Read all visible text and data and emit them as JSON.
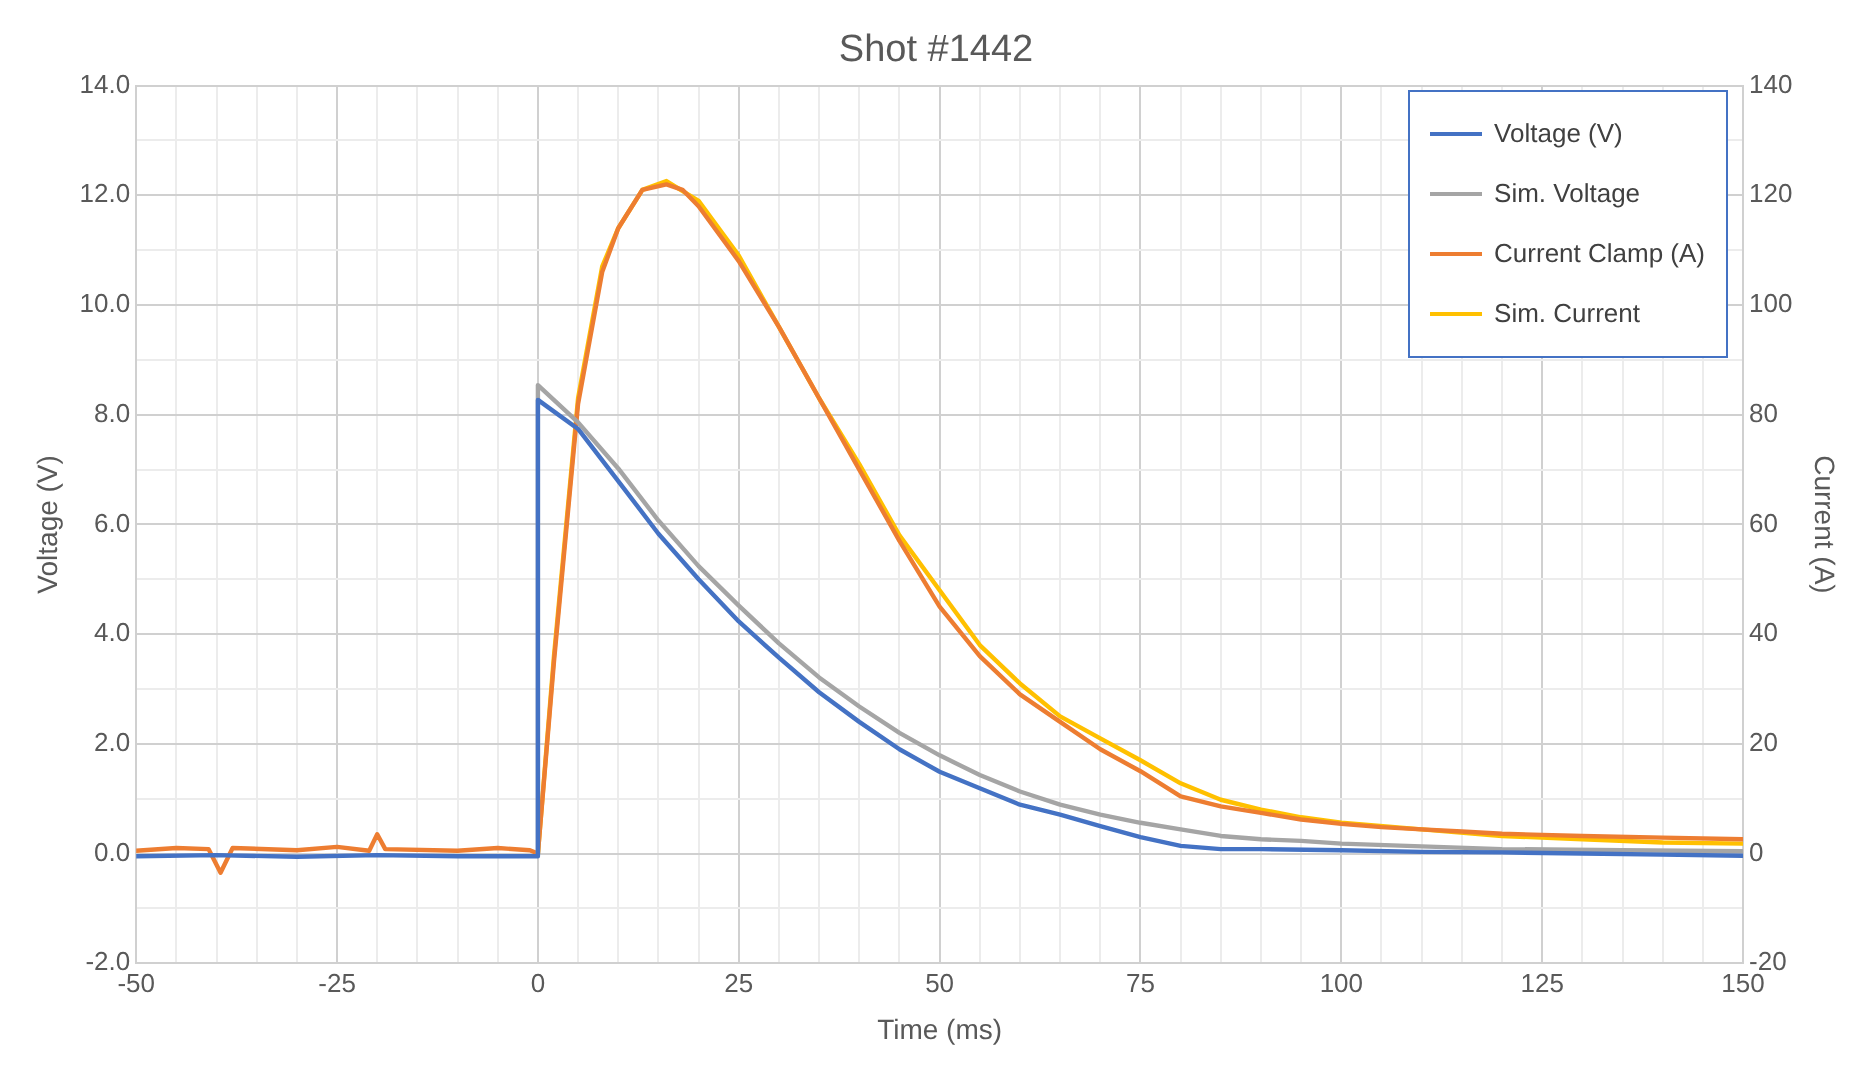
{
  "chart_data": {
    "type": "line",
    "title": "Shot #1442",
    "xlabel": "Time (ms)",
    "ylabel": "Voltage (V)",
    "y2label": "Current (A)",
    "xlim": [
      -50,
      150
    ],
    "xticks": [
      -50,
      {
        "value": -45,
        "label": null
      },
      {
        "value": -40,
        "label": null
      },
      {
        "value": -35,
        "label": null
      },
      {
        "value": -30,
        "label": null
      },
      -25,
      {
        "value": -20,
        "label": null
      },
      {
        "value": -15,
        "label": null
      },
      {
        "value": -10,
        "label": null
      },
      {
        "value": -5,
        "label": null
      },
      0,
      {
        "value": 5,
        "label": null
      },
      {
        "value": 10,
        "label": null
      },
      {
        "value": 15,
        "label": null
      },
      {
        "value": 20,
        "label": null
      },
      25,
      {
        "value": 30,
        "label": null
      },
      {
        "value": 35,
        "label": null
      },
      {
        "value": 40,
        "label": null
      },
      {
        "value": 45,
        "label": null
      },
      50,
      {
        "value": 55,
        "label": null
      },
      {
        "value": 60,
        "label": null
      },
      {
        "value": 65,
        "label": null
      },
      {
        "value": 70,
        "label": null
      },
      75,
      {
        "value": 80,
        "label": null
      },
      {
        "value": 85,
        "label": null
      },
      {
        "value": 90,
        "label": null
      },
      {
        "value": 95,
        "label": null
      },
      100,
      {
        "value": 105,
        "label": null
      },
      {
        "value": 110,
        "label": null
      },
      {
        "value": 115,
        "label": null
      },
      {
        "value": 120,
        "label": null
      },
      125,
      {
        "value": 130,
        "label": null
      },
      {
        "value": 135,
        "label": null
      },
      {
        "value": 140,
        "label": null
      },
      {
        "value": 145,
        "label": null
      },
      150
    ],
    "ylim": [
      -2,
      14
    ],
    "yticks": [
      {
        "value": -2,
        "label": "-2.0"
      },
      {
        "value": -1,
        "label": null
      },
      {
        "value": 0,
        "label": "0.0"
      },
      {
        "value": 1,
        "label": null
      },
      {
        "value": 2,
        "label": "2.0"
      },
      {
        "value": 3,
        "label": null
      },
      {
        "value": 4,
        "label": "4.0"
      },
      {
        "value": 5,
        "label": null
      },
      {
        "value": 6,
        "label": "6.0"
      },
      {
        "value": 7,
        "label": null
      },
      {
        "value": 8,
        "label": "8.0"
      },
      {
        "value": 9,
        "label": null
      },
      {
        "value": 10,
        "label": "10.0"
      },
      {
        "value": 11,
        "label": null
      },
      {
        "value": 12,
        "label": "12.0"
      },
      {
        "value": 13,
        "label": null
      },
      {
        "value": 14,
        "label": "14.0"
      }
    ],
    "y2lim": [
      -20,
      140
    ],
    "y2ticks": [
      -20,
      0,
      20,
      40,
      60,
      80,
      100,
      120,
      140
    ],
    "grid": true,
    "legend": "top right",
    "marker": "none",
    "line_style": "solid",
    "series": [
      {
        "name": "Voltage (V)",
        "color": "#4472c4",
        "x": [
          -50,
          -40,
          -30,
          -20,
          -10,
          0,
          0,
          5,
          10,
          15,
          20,
          25,
          30,
          35,
          40,
          45,
          50,
          55,
          60,
          65,
          70,
          75,
          80,
          85,
          90,
          100,
          110,
          120,
          130,
          140,
          150
        ],
        "values": [
          -0.05,
          -0.03,
          -0.06,
          -0.03,
          -0.05,
          -0.05,
          8.27,
          7.74,
          6.79,
          5.83,
          5.0,
          4.23,
          3.57,
          2.94,
          2.4,
          1.9,
          1.49,
          1.19,
          0.89,
          0.71,
          0.5,
          0.3,
          0.14,
          0.08,
          0.08,
          0.06,
          0.03,
          0.02,
          0.0,
          -0.02,
          -0.04
        ]
      },
      {
        "name": "Sim. Voltage",
        "color": "#a5a5a5",
        "x": [
          0,
          0,
          5,
          10,
          15,
          20,
          25,
          30,
          35,
          40,
          45,
          50,
          55,
          60,
          65,
          70,
          75,
          80,
          85,
          90,
          95,
          100,
          110,
          120,
          135,
          150
        ],
        "values": [
          0,
          8.54,
          7.86,
          7.02,
          6.07,
          5.24,
          4.52,
          3.83,
          3.21,
          2.68,
          2.2,
          1.79,
          1.43,
          1.13,
          0.89,
          0.71,
          0.56,
          0.44,
          0.32,
          0.26,
          0.23,
          0.18,
          0.13,
          0.08,
          0.06,
          0.04
        ]
      },
      {
        "name": "Current Clamp (A)",
        "color": "#ed7d31",
        "axis": "y2",
        "x": [
          -50,
          -45,
          -41,
          -39.5,
          -38,
          -30,
          -25,
          -21,
          -20,
          -19,
          -10,
          -5,
          -1,
          0,
          2,
          5,
          8,
          10,
          13,
          16,
          18,
          20,
          25,
          30,
          35,
          40,
          45,
          50,
          55,
          60,
          65,
          70,
          75,
          80,
          85,
          90,
          95,
          100,
          105,
          110,
          115,
          120,
          125,
          130,
          140,
          150
        ],
        "values": [
          0.5,
          1.0,
          0.8,
          -3.5,
          1.0,
          0.6,
          1.2,
          0.5,
          3.5,
          0.8,
          0.5,
          1.0,
          0.6,
          0,
          35,
          82,
          106,
          114,
          121,
          122,
          121,
          118,
          108,
          96,
          83,
          70,
          57,
          45,
          36,
          29,
          24,
          19,
          15,
          10.4,
          8.6,
          7.4,
          6.2,
          5.4,
          4.8,
          4.4,
          4.0,
          3.6,
          3.4,
          3.2,
          2.9,
          2.6
        ]
      },
      {
        "name": "Sim. Current",
        "color": "#ffc000",
        "axis": "y2",
        "x": [
          0,
          2,
          5,
          8,
          10,
          13,
          16,
          20,
          25,
          30,
          35,
          40,
          45,
          50,
          55,
          60,
          65,
          70,
          75,
          80,
          85,
          90,
          95,
          100,
          110,
          120,
          130,
          140,
          150
        ],
        "values": [
          0,
          36,
          83,
          107,
          114,
          121,
          122.6,
          119,
          109,
          96,
          83,
          71,
          58,
          48,
          38,
          31,
          25,
          21,
          17,
          12.8,
          9.8,
          8,
          6.6,
          5.6,
          4.4,
          3.2,
          2.6,
          2,
          1.8
        ]
      }
    ]
  }
}
